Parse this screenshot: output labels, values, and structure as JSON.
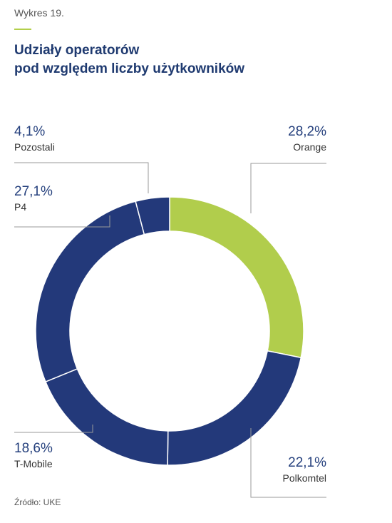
{
  "header": {
    "figure_label": "Wykres 19.",
    "title_line1": "Udziały operatorów",
    "title_line2": "pod względem liczby użytkowników"
  },
  "footer": {
    "source": "Źródło: UKE"
  },
  "colors": {
    "navy": "#23397a",
    "green": "#b1cd4c",
    "text_blue": "#25407d",
    "label_gray": "#333333",
    "leader": "#9a9a9a"
  },
  "chart_data": {
    "type": "pie",
    "subtype": "donut",
    "title": "Udziały operatorów pod względem liczby użytkowników",
    "legend": "none",
    "slices": [
      {
        "name": "Orange",
        "value": 28.2,
        "label": "28,2%",
        "color": "#b1cd4c"
      },
      {
        "name": "Polkomtel",
        "value": 22.1,
        "label": "22,1%",
        "color": "#23397a"
      },
      {
        "name": "T-Mobile",
        "value": 18.6,
        "label": "18,6%",
        "color": "#23397a"
      },
      {
        "name": "P4",
        "value": 27.1,
        "label": "27,1%",
        "color": "#23397a"
      },
      {
        "name": "Pozostali",
        "value": 4.1,
        "label": "4,1%",
        "color": "#23397a"
      }
    ]
  }
}
